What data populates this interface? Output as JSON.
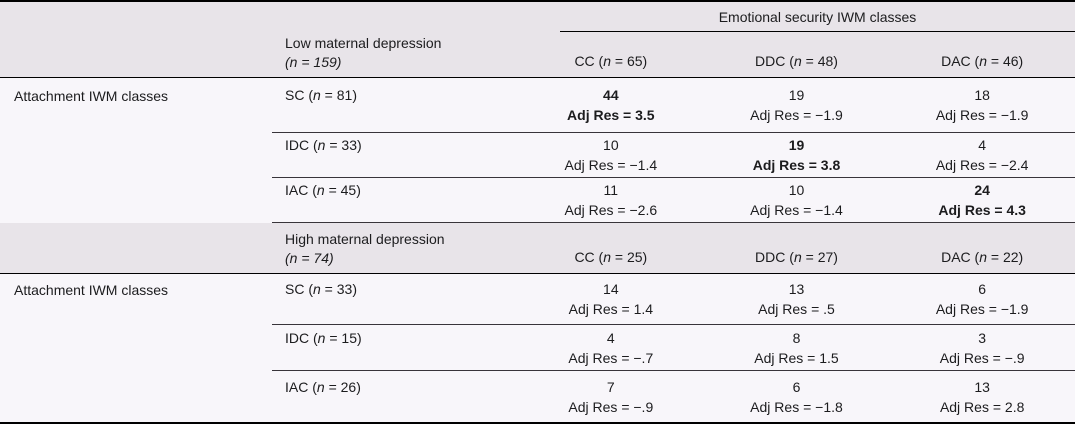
{
  "shared": {
    "n": "n"
  },
  "table": {
    "spanner": "Emotional security IWM classes",
    "row_header": "Attachment IWM classes",
    "colors": {
      "header_bg": "#e8e4e9",
      "body_bg": "#f8f6fa",
      "rule": "#000000"
    },
    "sections": [
      {
        "group": {
          "title": "Low maternal depression",
          "n_line": "(n = 159)"
        },
        "columns": [
          {
            "pre": "CC (",
            "post": " = 65)"
          },
          {
            "pre": "DDC (",
            "post": " = 48)"
          },
          {
            "pre": "DAC (",
            "post": " = 46)"
          }
        ],
        "rows": [
          {
            "label": {
              "pre": "SC (",
              "post": " = 81)"
            },
            "cells": [
              {
                "count": "44",
                "adj": "Adj Res = 3.5",
                "bold": true
              },
              {
                "count": "19",
                "adj": "Adj Res = −1.9"
              },
              {
                "count": "18",
                "adj": "Adj Res = −1.9"
              }
            ]
          },
          {
            "label": {
              "pre": "IDC (",
              "post": " = 33)"
            },
            "cells": [
              {
                "count": "10",
                "adj": "Adj Res = −1.4"
              },
              {
                "count": "19",
                "adj": "Adj Res = 3.8",
                "bold": true
              },
              {
                "count": "4",
                "adj": "Adj Res = −2.4"
              }
            ]
          },
          {
            "label": {
              "pre": "IAC (",
              "post": " = 45)"
            },
            "cells": [
              {
                "count": "11",
                "adj": "Adj Res = −2.6"
              },
              {
                "count": "10",
                "adj": "Adj Res = −1.4"
              },
              {
                "count": "24",
                "adj": "Adj Res = 4.3",
                "bold": true
              }
            ]
          }
        ]
      },
      {
        "group": {
          "title": "High maternal depression",
          "n_line": "(n = 74)"
        },
        "columns": [
          {
            "pre": "CC (",
            "post": " = 25)"
          },
          {
            "pre": "DDC (",
            "post": " = 27)"
          },
          {
            "pre": "DAC (",
            "post": " = 22)"
          }
        ],
        "rows": [
          {
            "label": {
              "pre": "SC (",
              "post": " = 33)"
            },
            "cells": [
              {
                "count": "14",
                "adj": "Adj Res = 1.4"
              },
              {
                "count": "13",
                "adj": "Adj Res = .5"
              },
              {
                "count": "6",
                "adj": "Adj Res = −1.9"
              }
            ]
          },
          {
            "label": {
              "pre": "IDC (",
              "post": " = 15)"
            },
            "cells": [
              {
                "count": "4",
                "adj": "Adj Res = −.7"
              },
              {
                "count": "8",
                "adj": "Adj Res = 1.5"
              },
              {
                "count": "3",
                "adj": "Adj Res = −.9"
              }
            ]
          },
          {
            "label": {
              "pre": "IAC (",
              "post": " = 26)"
            },
            "cells": [
              {
                "count": "7",
                "adj": "Adj Res = −.9"
              },
              {
                "count": "6",
                "adj": "Adj Res = −1.8"
              },
              {
                "count": "13",
                "adj": "Adj Res = 2.8"
              }
            ]
          }
        ]
      }
    ]
  }
}
